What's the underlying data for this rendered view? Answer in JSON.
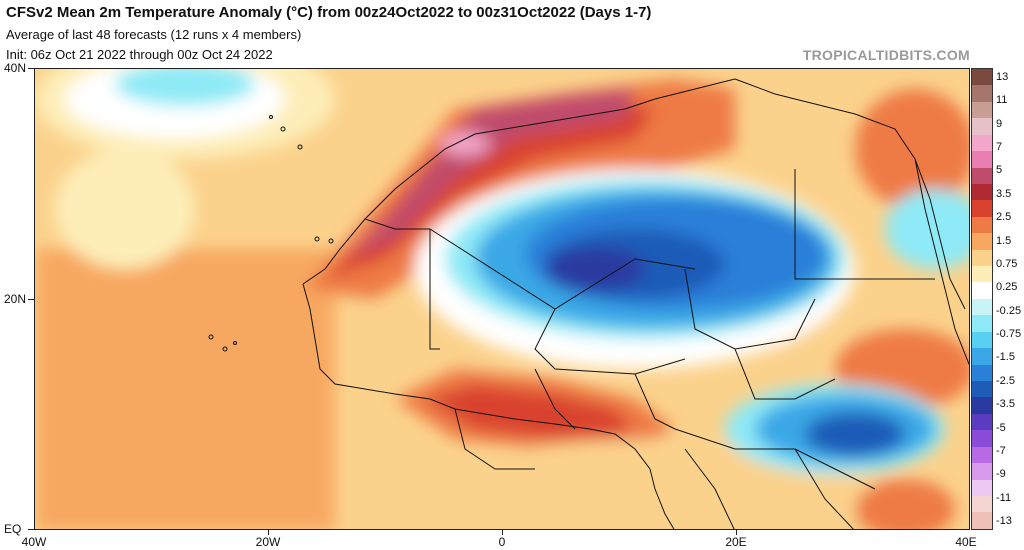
{
  "header": {
    "title": "CFSv2 Mean 2m Temperature Anomaly (°C) from 00z24Oct2022 to 00z31Oct2022 (Days 1-7)",
    "subtitle1": "Average of last 48 forecasts (12 runs x 4 members)",
    "subtitle2": "Init: 06z Oct 21 2022 through 00z Oct 24 2022",
    "brand": "TROPICALTIDBITS.COM"
  },
  "axes": {
    "lat_labels": [
      "40N",
      "20N",
      "EQ"
    ],
    "lon_labels": [
      "40W",
      "20W",
      "0",
      "20E",
      "40E"
    ]
  },
  "colorbar": {
    "labels": [
      "13",
      "11",
      "9",
      "7",
      "5",
      "3.5",
      "2.5",
      "1.5",
      "0.75",
      "0.25",
      "-0.25",
      "-0.75",
      "-1.5",
      "-2.5",
      "-3.5",
      "-5",
      "-7",
      "-9",
      "-11",
      "-13"
    ],
    "colors": [
      "#7a4a3e",
      "#a5766b",
      "#c89e94",
      "#e6c2c8",
      "#f3a6c8",
      "#e87fb0",
      "#c04c6c",
      "#b02a34",
      "#d9432e",
      "#ee7a45",
      "#f7a860",
      "#fbd28c",
      "#fdeeb8",
      "#ffffff",
      "#c8f4f8",
      "#8eeaf6",
      "#5ad0f0",
      "#3aa8e6",
      "#2a7fd8",
      "#1e5cb8",
      "#2a3aa0",
      "#5a3cc0",
      "#8a4cd8",
      "#b86ae4",
      "#d89aec",
      "#ecc8f2",
      "#f4d4d0",
      "#eec0b8"
    ]
  }
}
